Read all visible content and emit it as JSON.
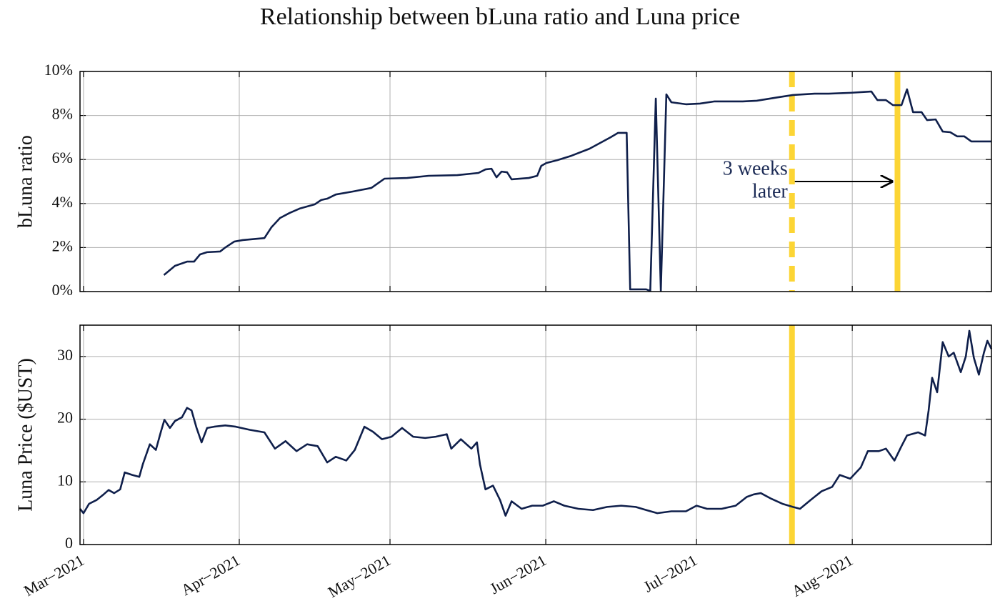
{
  "title": "Relationship between bLuna ratio and Luna price",
  "chart_data": [
    {
      "type": "line",
      "ylabel": "bLuna ratio",
      "color": "#0f1f4b",
      "grid": true,
      "xlim": [
        -0.7,
        180.7
      ],
      "xticks": [
        0,
        31,
        61,
        92,
        122,
        153
      ],
      "ylim": [
        0,
        10
      ],
      "yticks": [
        {
          "value": 0,
          "label": "0%"
        },
        {
          "value": 2,
          "label": "2%"
        },
        {
          "value": 4,
          "label": "4%"
        },
        {
          "value": 6,
          "label": "6%"
        },
        {
          "value": 8,
          "label": "8%"
        },
        {
          "value": 10,
          "label": "10%"
        }
      ],
      "x": [
        16,
        18.2,
        20.6,
        22,
        23.2,
        24.6,
        27.2,
        28.2,
        30,
        31.7,
        36,
        37.4,
        39.1,
        41,
        43,
        46,
        47.3,
        48.5,
        50.2,
        53.7,
        57.3,
        59.9,
        64.4,
        68.7,
        74.4,
        78.6,
        80,
        81.2,
        82.2,
        83.2,
        84.3,
        85.2,
        88.6,
        90.3,
        91.1,
        92.1,
        94.3,
        97.1,
        100.7,
        102.8,
        104.9,
        106.4,
        108.1,
        108.8,
        112,
        112.8,
        113.9,
        114.9,
        116,
        117,
        119.9,
        122.7,
        125.6,
        131.2,
        134,
        138.3,
        141.2,
        145.5,
        148.3,
        152.6,
        156.8,
        158,
        159.7,
        161.1,
        162.8,
        163.9,
        165.1,
        166.8,
        167.9,
        169.6,
        171,
        172.5,
        173.9,
        175.3,
        176.7,
        180.7
      ],
      "values": [
        0.75,
        1.17,
        1.36,
        1.36,
        1.69,
        1.79,
        1.82,
        2.0,
        2.27,
        2.34,
        2.43,
        2.92,
        3.34,
        3.57,
        3.77,
        3.96,
        4.16,
        4.22,
        4.41,
        4.55,
        4.71,
        5.13,
        5.16,
        5.26,
        5.29,
        5.39,
        5.55,
        5.58,
        5.19,
        5.45,
        5.42,
        5.1,
        5.16,
        5.26,
        5.71,
        5.84,
        5.97,
        6.17,
        6.49,
        6.75,
        7.01,
        7.21,
        7.21,
        0.1,
        0.1,
        0.03,
        8.77,
        0.03,
        8.96,
        8.6,
        8.51,
        8.54,
        8.64,
        8.64,
        8.67,
        8.83,
        8.93,
        8.99,
        8.99,
        9.03,
        9.09,
        8.7,
        8.7,
        8.47,
        8.47,
        9.19,
        8.15,
        8.15,
        7.79,
        7.82,
        7.27,
        7.24,
        7.05,
        7.05,
        6.82,
        6.82
      ],
      "vlines": [
        {
          "x": 141,
          "dashed": true,
          "color": "#fcd535"
        },
        {
          "x": 162,
          "dashed": false,
          "color": "#fcd535"
        }
      ],
      "annotation": {
        "lines": [
          "3 weeks",
          "later"
        ],
        "from": 141,
        "to": 162,
        "y": 5
      }
    },
    {
      "type": "line",
      "ylabel": "Luna Price ($UST)",
      "color": "#0f1f4b",
      "grid": true,
      "xlim": [
        -0.7,
        180.7
      ],
      "xticks": [
        {
          "value": 0,
          "label": "Mar−2021"
        },
        {
          "value": 31,
          "label": "Apr−2021"
        },
        {
          "value": 61,
          "label": "May−2021"
        },
        {
          "value": 92,
          "label": "Jun−2021"
        },
        {
          "value": 122,
          "label": "Jul−2021"
        },
        {
          "value": 153,
          "label": "Aug−2021"
        }
      ],
      "ylim": [
        0,
        35
      ],
      "yticks": [
        0,
        10,
        20,
        30
      ],
      "x": [
        -0.7,
        0,
        1.1,
        2.6,
        4,
        5,
        6.1,
        7.3,
        8.2,
        9.7,
        11.1,
        11.8,
        13.2,
        14.4,
        15.4,
        16.1,
        17.2,
        18.2,
        19.6,
        20.6,
        21.5,
        22.5,
        23.5,
        24.6,
        26,
        28.2,
        30.3,
        33.1,
        36,
        38.1,
        40.2,
        42.4,
        44.5,
        46.6,
        48.5,
        50.2,
        52.3,
        54,
        55.9,
        57.6,
        59.4,
        61.3,
        63.4,
        65.6,
        68,
        70.1,
        72.3,
        73.2,
        75.1,
        77.2,
        78.3,
        78.9,
        80,
        81.5,
        82.9,
        84,
        85.2,
        87.2,
        89.3,
        91.4,
        93.6,
        95.7,
        98.5,
        101.4,
        104.2,
        107,
        109.9,
        112,
        114.2,
        117,
        119.9,
        122,
        124.1,
        127,
        129.8,
        132,
        133.4,
        134.8,
        136.9,
        139.1,
        141.2,
        142.6,
        144.7,
        146.9,
        149,
        150.5,
        152.6,
        154.7,
        156.1,
        158.3,
        159.7,
        161.4,
        162.8,
        163.9,
        166.1,
        167.5,
        168.2,
        168.9,
        169.9,
        171,
        172.2,
        173.2,
        174.6,
        175.6,
        176.3,
        177.2,
        178.2,
        179.2,
        179.9,
        180.7
      ],
      "values": [
        5.7,
        5.0,
        6.5,
        7.1,
        8.0,
        8.7,
        8.2,
        8.8,
        11.5,
        11.1,
        10.8,
        12.8,
        16.0,
        15.1,
        18.0,
        19.9,
        18.6,
        19.7,
        20.3,
        21.8,
        21.4,
        18.6,
        16.3,
        18.6,
        18.8,
        19.0,
        18.8,
        18.3,
        17.9,
        15.3,
        16.5,
        14.9,
        16.0,
        15.7,
        13.1,
        14.0,
        13.4,
        15.1,
        18.8,
        18.0,
        16.8,
        17.2,
        18.6,
        17.2,
        17.0,
        17.2,
        17.6,
        15.3,
        16.8,
        15.3,
        16.3,
        12.8,
        8.8,
        9.4,
        7.1,
        4.6,
        6.9,
        5.7,
        6.2,
        6.2,
        6.9,
        6.2,
        5.7,
        5.5,
        6.0,
        6.2,
        6.0,
        5.5,
        5.0,
        5.3,
        5.3,
        6.2,
        5.7,
        5.7,
        6.2,
        7.6,
        8.0,
        8.2,
        7.3,
        6.5,
        6.0,
        5.7,
        7.1,
        8.5,
        9.2,
        11.1,
        10.5,
        12.3,
        14.9,
        14.9,
        15.3,
        13.4,
        15.7,
        17.4,
        17.9,
        17.4,
        21.4,
        26.6,
        24.3,
        32.3,
        30.0,
        30.6,
        27.5,
        30.0,
        34.1,
        29.8,
        27.1,
        30.6,
        32.5,
        31.2
      ],
      "vlines": [
        {
          "x": 141,
          "dashed": false,
          "color": "#fcd535"
        }
      ]
    }
  ]
}
